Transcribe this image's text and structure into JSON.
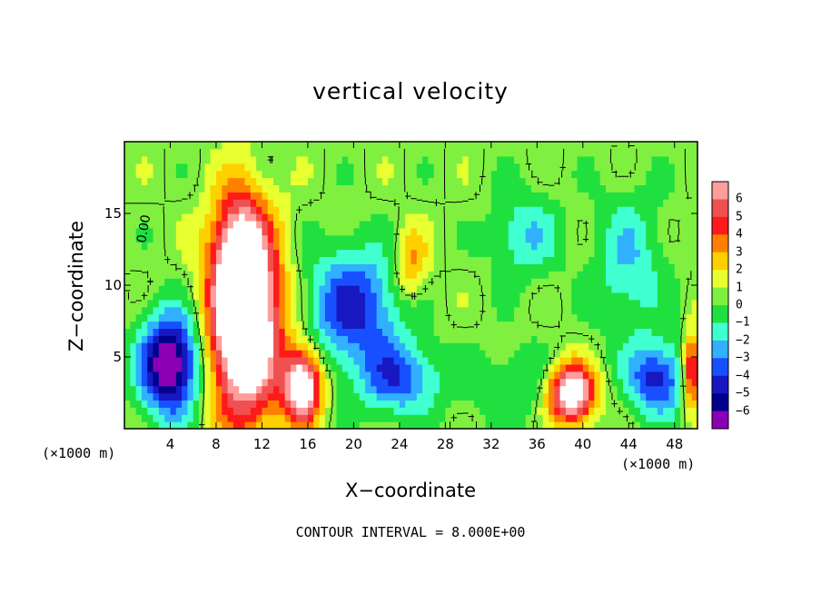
{
  "chart_data": {
    "type": "heatmap",
    "title": "vertical velocity",
    "xlabel": "X−coordinate",
    "ylabel": "Z−coordinate",
    "x_unit_label": "(×1000 m)",
    "x_unit_label_right": "(×1000 m)",
    "footer": "CONTOUR INTERVAL = 8.000E+00",
    "contour_label": "0.00",
    "xlim": [
      0,
      50
    ],
    "ylim": [
      0,
      20
    ],
    "xticks": [
      4,
      8,
      12,
      16,
      20,
      24,
      28,
      32,
      36,
      40,
      44,
      48
    ],
    "yticks": [
      5,
      10,
      15
    ],
    "colorbar": {
      "levels": [
        "6",
        "5",
        "4",
        "3",
        "2",
        "1",
        "0",
        "−1",
        "−2",
        "−3",
        "−4",
        "−5",
        "−6"
      ],
      "values": [
        6,
        5,
        4,
        3,
        2,
        1,
        0,
        -1,
        -2,
        -3,
        -4,
        -5,
        -6
      ],
      "colors": [
        "#ff9d9d",
        "#f05050",
        "#ff1a1a",
        "#ff8000",
        "#ffd000",
        "#e8ff30",
        "#80f040",
        "#20e040",
        "#40ffd0",
        "#30b0ff",
        "#1850ff",
        "#1818c0",
        "#00008c",
        "#8c00b4"
      ]
    },
    "features": [
      {
        "x": 10.5,
        "z": 7.5,
        "value": 12,
        "rx": 3.0,
        "rz": 6.5
      },
      {
        "x": 10.0,
        "z": 13.0,
        "value": 4,
        "rx": 2.2,
        "rz": 4.0
      },
      {
        "x": 15.5,
        "z": 3.0,
        "value": 9,
        "rx": 1.6,
        "rz": 2.5
      },
      {
        "x": 4.0,
        "z": 4.5,
        "value": -8,
        "rx": 2.6,
        "rz": 3.5
      },
      {
        "x": 39.0,
        "z": 2.5,
        "value": 9,
        "rx": 2.0,
        "rz": 2.0
      },
      {
        "x": 46.5,
        "z": 3.5,
        "value": -5,
        "rx": 2.5,
        "rz": 2.5
      },
      {
        "x": 49.5,
        "z": 4.0,
        "value": 6,
        "rx": 0.8,
        "rz": 2.5
      },
      {
        "x": 20.0,
        "z": 8.5,
        "value": -5,
        "rx": 4.0,
        "rz": 4.0
      },
      {
        "x": 24.0,
        "z": 3.5,
        "value": -4,
        "rx": 3.5,
        "rz": 2.5
      },
      {
        "x": 25.0,
        "z": 11.5,
        "value": 3,
        "rx": 1.5,
        "rz": 2.5
      },
      {
        "x": 35.0,
        "z": 13.5,
        "value": -2.5,
        "rx": 3.0,
        "rz": 3.0
      },
      {
        "x": 44.0,
        "z": 11.5,
        "value": -2.5,
        "rx": 3.0,
        "rz": 5.0
      },
      {
        "x": 34.0,
        "z": 3.0,
        "value": -1.5,
        "rx": 4.0,
        "rz": 3.0
      }
    ]
  }
}
